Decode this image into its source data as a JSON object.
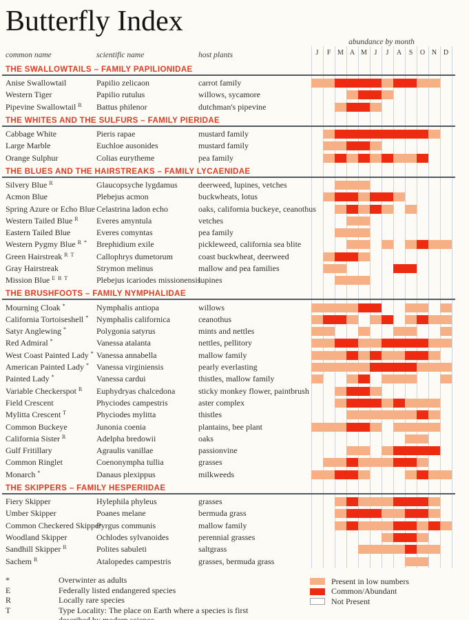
{
  "page": {
    "title": "Butterfly Index"
  },
  "columns": {
    "common_name": "common name",
    "scientific_name": "scientific name",
    "host_plants": "host plants",
    "abundance": "abundance by month"
  },
  "colors": {
    "low": "#F7B085",
    "common": "#ED2B11",
    "header": "#E23A1E",
    "rule": "#50565E",
    "grid": "#CDD3D8"
  },
  "footnotes": [
    {
      "symbol": "*",
      "text": "Overwinter as adults"
    },
    {
      "symbol": "E",
      "text": "Federally listed endangered species"
    },
    {
      "symbol": "R",
      "text": "Locally rare species"
    },
    {
      "symbol": "T",
      "text": "Type Locality: The place on Earth where a species is first described by modern science."
    }
  ],
  "chart_data": {
    "type": "heatmap",
    "title": "Butterfly Index",
    "x_categories": [
      "J",
      "F",
      "M",
      "A",
      "M",
      "J",
      "J",
      "A",
      "S",
      "O",
      "N",
      "D"
    ],
    "legend": [
      {
        "value": 1,
        "key": "low",
        "label": "Present in low numbers"
      },
      {
        "value": 2,
        "key": "common",
        "label": "Common/Abundant"
      },
      {
        "value": 0,
        "key": "none",
        "label": "Not Present"
      }
    ],
    "sections": [
      {
        "title": "THE SWALLOWTAILS – FAMILY PAPILIONIDAE",
        "rows": [
          {
            "common_name": "Anise Swallowtail",
            "marks": "",
            "scientific_name": "Papilio zelicaon",
            "host_plants": "carrot family",
            "months": [
              1,
              1,
              2,
              2,
              2,
              2,
              1,
              2,
              2,
              1,
              1,
              0
            ]
          },
          {
            "common_name": "Western Tiger",
            "marks": "",
            "scientific_name": "Papilio rutulus",
            "host_plants": "willows, sycamore",
            "months": [
              0,
              0,
              0,
              1,
              2,
              2,
              1,
              0,
              0,
              0,
              0,
              0
            ]
          },
          {
            "common_name": "Pipevine Swallowtail",
            "marks": "R",
            "scientific_name": "Battus philenor",
            "host_plants": "dutchman's pipevine",
            "months": [
              0,
              0,
              1,
              2,
              2,
              1,
              0,
              0,
              0,
              0,
              0,
              0
            ]
          }
        ]
      },
      {
        "title": "THE WHITES AND THE SULFURS – FAMILY PIERIDAE",
        "rows": [
          {
            "common_name": "Cabbage White",
            "marks": "",
            "scientific_name": "Pieris rapae",
            "host_plants": "mustard family",
            "months": [
              0,
              1,
              2,
              2,
              2,
              2,
              2,
              2,
              2,
              2,
              1,
              0
            ]
          },
          {
            "common_name": "Large Marble",
            "marks": "",
            "scientific_name": "Euchloe ausonides",
            "host_plants": "mustard family",
            "months": [
              0,
              1,
              1,
              2,
              2,
              1,
              0,
              0,
              0,
              0,
              0,
              0
            ]
          },
          {
            "common_name": "Orange Sulphur",
            "marks": "",
            "scientific_name": "Colias eurytheme",
            "host_plants": "pea family",
            "months": [
              0,
              1,
              2,
              1,
              2,
              1,
              2,
              1,
              1,
              2,
              0,
              0
            ]
          }
        ]
      },
      {
        "title": "THE BLUES AND THE HAIRSTREAKS – FAMILY LYCAENIDAE",
        "rows": [
          {
            "common_name": "Silvery Blue",
            "marks": "R",
            "scientific_name": "Glaucopsyche lygdamus",
            "host_plants": "deerweed, lupines, vetches",
            "months": [
              0,
              0,
              1,
              1,
              1,
              0,
              0,
              0,
              0,
              0,
              0,
              0
            ]
          },
          {
            "common_name": "Acmon Blue",
            "marks": "",
            "scientific_name": "Plebejus acmon",
            "host_plants": "buckwheats, lotus",
            "months": [
              0,
              1,
              2,
              2,
              1,
              2,
              2,
              1,
              0,
              0,
              0,
              0
            ]
          },
          {
            "common_name": "Spring Azure or Echo Blue",
            "marks": "",
            "scientific_name": "Celastrina ladon echo",
            "host_plants": "oaks, california buckeye, ceanothus",
            "months": [
              0,
              0,
              1,
              2,
              1,
              2,
              1,
              0,
              1,
              0,
              0,
              0
            ]
          },
          {
            "common_name": "Western Tailed Blue",
            "marks": "R",
            "scientific_name": "Everes amyntula",
            "host_plants": "vetches",
            "months": [
              0,
              0,
              0,
              1,
              1,
              0,
              0,
              0,
              0,
              0,
              0,
              0
            ]
          },
          {
            "common_name": "Eastern Tailed Blue",
            "marks": "",
            "scientific_name": "Everes comyntas",
            "host_plants": "pea family",
            "months": [
              0,
              0,
              1,
              1,
              1,
              0,
              0,
              0,
              0,
              0,
              0,
              0
            ]
          },
          {
            "common_name": "Western Pygmy Blue",
            "marks": "R *",
            "scientific_name": "Brephidium exile",
            "host_plants": "pickleweed, california sea blite",
            "months": [
              0,
              0,
              0,
              1,
              1,
              0,
              1,
              0,
              1,
              2,
              1,
              1
            ]
          },
          {
            "common_name": "Green Hairstreak",
            "marks": "R T",
            "scientific_name": "Callophrys dumetorum",
            "host_plants": "coast buckwheat, deerweed",
            "months": [
              0,
              1,
              2,
              2,
              1,
              0,
              0,
              0,
              0,
              0,
              0,
              0
            ]
          },
          {
            "common_name": "Gray Hairstreak",
            "marks": "",
            "scientific_name": "Strymon melinus",
            "host_plants": "mallow and pea families",
            "months": [
              0,
              1,
              1,
              0,
              0,
              0,
              0,
              2,
              2,
              0,
              0,
              0
            ]
          },
          {
            "common_name": "Mission Blue",
            "marks": "E R T",
            "scientific_name": "Plebejus icariodes missionensis",
            "host_plants": "lupines",
            "months": [
              0,
              0,
              1,
              1,
              1,
              0,
              0,
              0,
              0,
              0,
              0,
              0
            ]
          }
        ]
      },
      {
        "title": "THE BRUSHFOOTS – FAMILY NYMPHALIDAE",
        "rows": [
          {
            "common_name": "Mourning Cloak",
            "marks": "*",
            "scientific_name": "Nymphalis antiopa",
            "host_plants": "willows",
            "months": [
              1,
              1,
              1,
              1,
              2,
              2,
              0,
              0,
              1,
              1,
              0,
              1
            ]
          },
          {
            "common_name": "California Tortoiseshell",
            "marks": "*",
            "scientific_name": "Nymphalis californica",
            "host_plants": "ceanothus",
            "months": [
              1,
              2,
              2,
              1,
              0,
              1,
              2,
              0,
              1,
              2,
              1,
              1
            ]
          },
          {
            "common_name": "Satyr Anglewing",
            "marks": "*",
            "scientific_name": "Polygonia satyrus",
            "host_plants": "mints and nettles",
            "months": [
              1,
              1,
              0,
              0,
              1,
              0,
              0,
              1,
              1,
              0,
              0,
              1
            ]
          },
          {
            "common_name": "Red Admiral",
            "marks": "*",
            "scientific_name": "Vanessa atalanta",
            "host_plants": "nettles, pellitory",
            "months": [
              1,
              1,
              2,
              2,
              1,
              1,
              2,
              2,
              2,
              2,
              1,
              1
            ]
          },
          {
            "common_name": "West Coast Painted Lady",
            "marks": "*",
            "scientific_name": "Vanessa annabella",
            "host_plants": "mallow family",
            "months": [
              1,
              1,
              1,
              2,
              1,
              2,
              1,
              1,
              2,
              2,
              1,
              0
            ]
          },
          {
            "common_name": "American Painted Lady",
            "marks": "*",
            "scientific_name": "Vanessa virginiensis",
            "host_plants": "pearly everlasting",
            "months": [
              1,
              1,
              1,
              1,
              1,
              2,
              2,
              2,
              2,
              1,
              1,
              1
            ]
          },
          {
            "common_name": "Painted Lady",
            "marks": "*",
            "scientific_name": "Vanessa cardui",
            "host_plants": "thistles, mallow family",
            "months": [
              1,
              0,
              0,
              1,
              2,
              0,
              1,
              1,
              1,
              0,
              0,
              1
            ]
          },
          {
            "common_name": "Variable Checkerspot",
            "marks": "R",
            "scientific_name": "Euphydryas chalcedona",
            "host_plants": "sticky monkey flower, paintbrush",
            "months": [
              0,
              0,
              1,
              2,
              2,
              1,
              0,
              0,
              0,
              0,
              0,
              0
            ]
          },
          {
            "common_name": "Field Crescent",
            "marks": "",
            "scientific_name": "Phyciodes campestris",
            "host_plants": "aster complex",
            "months": [
              0,
              0,
              1,
              2,
              2,
              2,
              1,
              2,
              1,
              1,
              1,
              0
            ]
          },
          {
            "common_name": "Mylitta Crescent",
            "marks": "T",
            "scientific_name": "Phyciodes mylitta",
            "host_plants": "thistles",
            "months": [
              0,
              0,
              0,
              1,
              1,
              1,
              1,
              1,
              1,
              2,
              1,
              0
            ]
          },
          {
            "common_name": "Common Buckeye",
            "marks": "",
            "scientific_name": "Junonia coenia",
            "host_plants": "plantains, bee plant",
            "months": [
              1,
              1,
              1,
              2,
              2,
              1,
              0,
              1,
              1,
              1,
              1,
              0
            ]
          },
          {
            "common_name": "California Sister",
            "marks": "R",
            "scientific_name": "Adelpha bredowii",
            "host_plants": "oaks",
            "months": [
              0,
              0,
              0,
              0,
              0,
              0,
              0,
              0,
              1,
              1,
              0,
              0
            ]
          },
          {
            "common_name": "Gulf Fritillary",
            "marks": "",
            "scientific_name": "Agraulis vanillae",
            "host_plants": "passionvine",
            "months": [
              0,
              0,
              0,
              1,
              1,
              0,
              1,
              2,
              2,
              2,
              2,
              0
            ]
          },
          {
            "common_name": "Common Ringlet",
            "marks": "",
            "scientific_name": "Coenonympha tullia",
            "host_plants": "grasses",
            "months": [
              0,
              1,
              1,
              2,
              1,
              1,
              1,
              2,
              2,
              1,
              0,
              0
            ]
          },
          {
            "common_name": "Monarch",
            "marks": "*",
            "scientific_name": "Danaus plexippus",
            "host_plants": "milkweeds",
            "months": [
              1,
              1,
              2,
              2,
              1,
              0,
              0,
              0,
              1,
              2,
              1,
              1
            ]
          }
        ]
      },
      {
        "title": "THE SKIPPERS – FAMILY HESPERIIDAE",
        "rows": [
          {
            "common_name": "Fiery Skipper",
            "marks": "",
            "scientific_name": "Hylephila phyleus",
            "host_plants": "grasses",
            "months": [
              0,
              0,
              1,
              2,
              1,
              1,
              1,
              2,
              2,
              2,
              1,
              0
            ]
          },
          {
            "common_name": "Umber Skipper",
            "marks": "",
            "scientific_name": "Poanes melane",
            "host_plants": "bermuda grass",
            "months": [
              0,
              0,
              1,
              2,
              2,
              2,
              1,
              1,
              2,
              2,
              1,
              0
            ]
          },
          {
            "common_name": "Common Checkered Skipper",
            "marks": "",
            "scientific_name": "Pyrgus communis",
            "host_plants": "mallow family",
            "months": [
              0,
              0,
              1,
              2,
              1,
              1,
              1,
              2,
              2,
              1,
              2,
              1
            ]
          },
          {
            "common_name": "Woodland Skipper",
            "marks": "",
            "scientific_name": "Ochlodes sylvanoides",
            "host_plants": "perennial grasses",
            "months": [
              0,
              0,
              0,
              0,
              0,
              0,
              1,
              2,
              2,
              1,
              0,
              0
            ]
          },
          {
            "common_name": "Sandhill Skipper",
            "marks": "R",
            "scientific_name": "Polites sabuleti",
            "host_plants": "saltgrass",
            "months": [
              0,
              0,
              0,
              0,
              1,
              1,
              1,
              1,
              2,
              1,
              1,
              0
            ]
          },
          {
            "common_name": "Sachem",
            "marks": "R",
            "scientific_name": "Atalopedes campestris",
            "host_plants": "grasses, bermuda grass",
            "months": [
              0,
              0,
              0,
              0,
              0,
              0,
              0,
              0,
              1,
              1,
              0,
              0
            ]
          }
        ]
      }
    ]
  }
}
